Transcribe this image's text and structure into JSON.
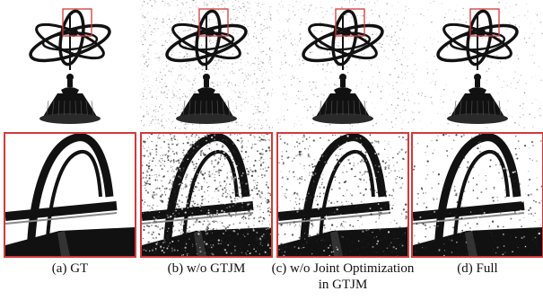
{
  "panels": [
    {
      "caption": "(a) GT",
      "noise": "none"
    },
    {
      "caption": "(b) w/o GTJM",
      "noise": "heavy"
    },
    {
      "caption": "(c) w/o Joint Optimization in GTJM",
      "noise": "medium"
    },
    {
      "caption": "(d) Full",
      "noise": "light"
    }
  ],
  "colors": {
    "zoom_border": "#d13a3a",
    "background": "#ffffff",
    "object": "#111111"
  }
}
